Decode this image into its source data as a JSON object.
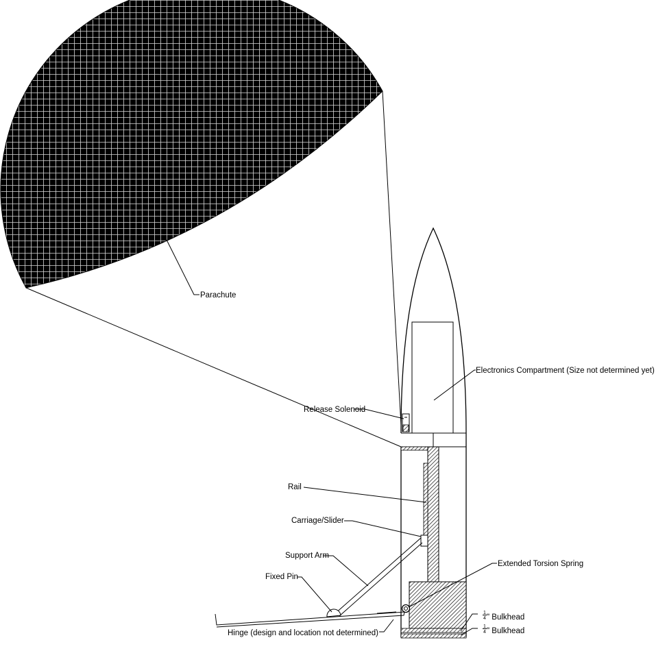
{
  "labels": {
    "parachute": "Parachute",
    "electronics": "Electronics Compartment (Size not determined yet)",
    "release_solenoid": "Release Solenoid",
    "rail": "Rail",
    "carriage": "Carriage/Slider",
    "support_arm": "Support Arm",
    "fixed_pin": "Fixed Pin",
    "torsion_spring": "Extended Torsion Spring",
    "bulkhead_1": "\" Bulkhead",
    "bulkhead_2": "\" Bulkhead",
    "hinge": "Hinge (design and location not determined)"
  },
  "fraction": {
    "numerator": "1",
    "denominator": "4"
  }
}
